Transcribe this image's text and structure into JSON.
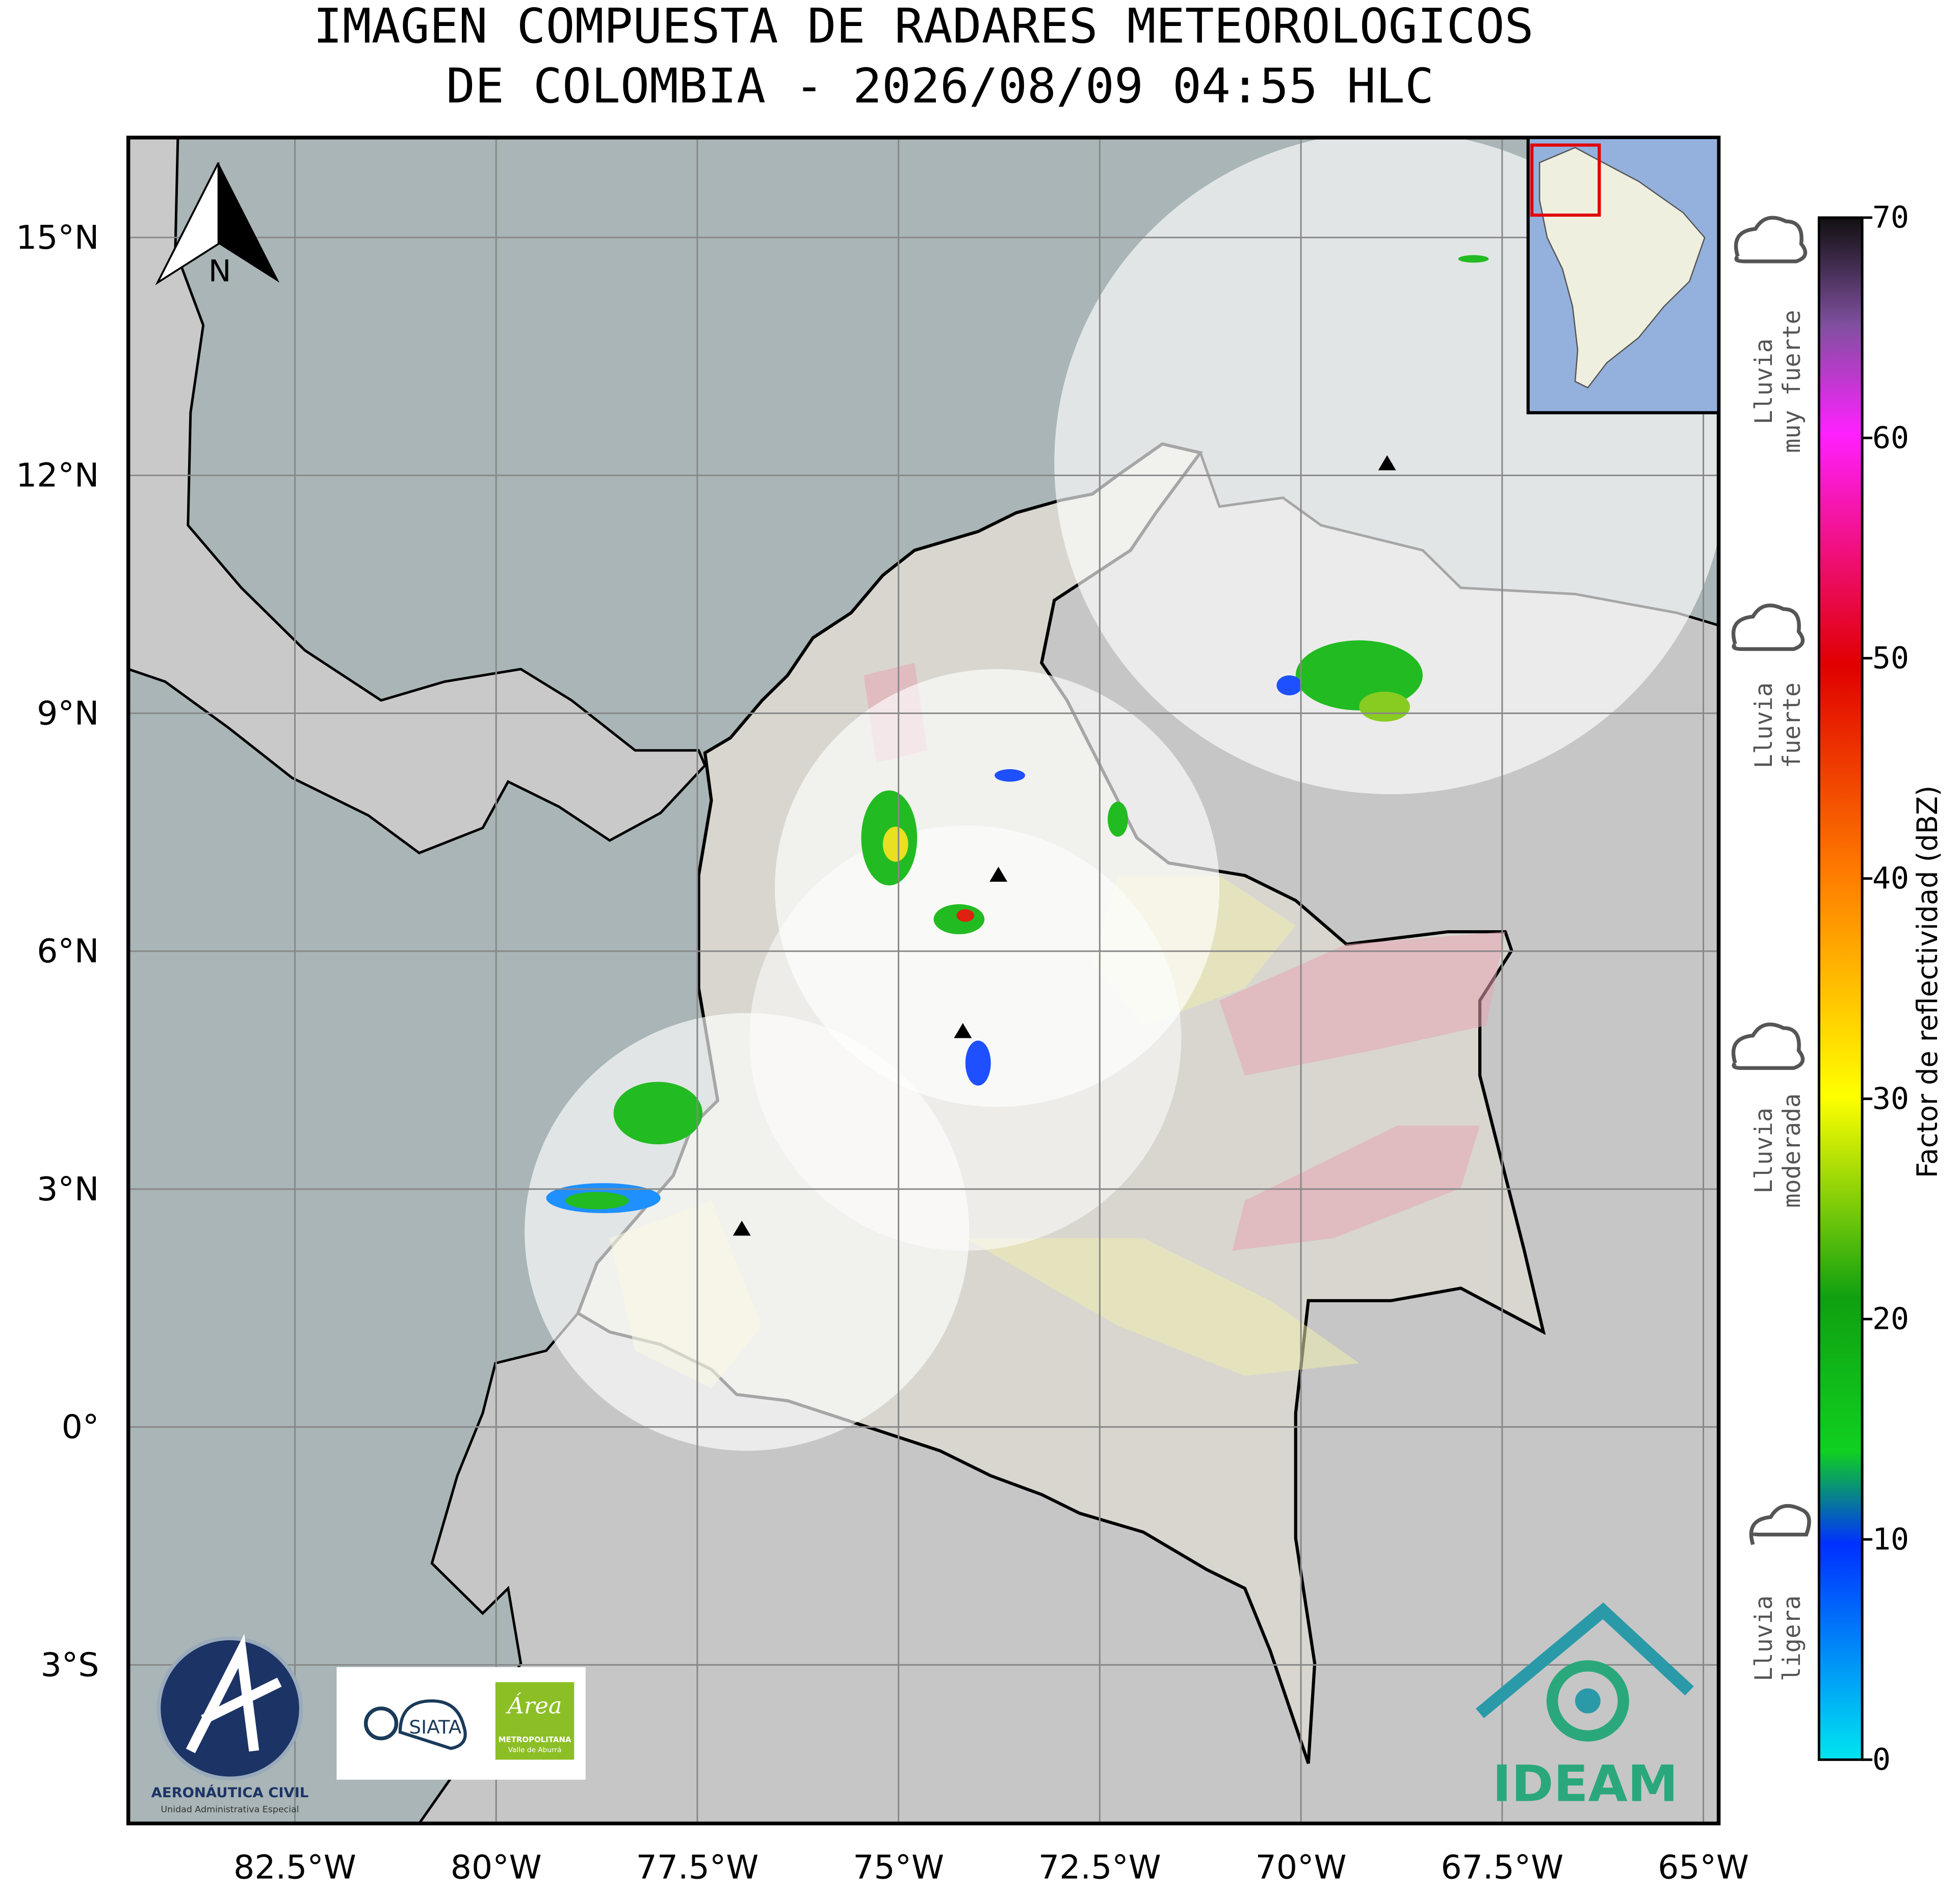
{
  "title": [
    "IMAGEN COMPUESTA DE RADARES METEOROLOGICOS",
    "DE COLOMBIA - 2026/08/09 04:55 HLC"
  ],
  "map": {
    "xlim": [
      -84.57,
      -64.81
    ],
    "ylim": [
      -5.0,
      16.26
    ],
    "grid": true,
    "north_label": "N",
    "xticks": [
      {
        "value": -82.5,
        "label": "82.5°W"
      },
      {
        "value": -80,
        "label": "80°W"
      },
      {
        "value": -77.5,
        "label": "77.5°W"
      },
      {
        "value": -75,
        "label": "75°W"
      },
      {
        "value": -72.5,
        "label": "72.5°W"
      },
      {
        "value": -70,
        "label": "70°W"
      },
      {
        "value": -67.5,
        "label": "67.5°W"
      },
      {
        "value": -65,
        "label": "65°W"
      }
    ],
    "yticks": [
      {
        "value": 15,
        "label": "15°N"
      },
      {
        "value": 12,
        "label": "12°N"
      },
      {
        "value": 9,
        "label": "9°N"
      },
      {
        "value": 6,
        "label": "6°N"
      },
      {
        "value": 3,
        "label": "3°N"
      },
      {
        "value": 0,
        "label": "0°"
      },
      {
        "value": -3,
        "label": "3°S"
      }
    ]
  },
  "colorbar": {
    "label": "Factor de reflectividad (dBZ)",
    "lim": [
      0,
      70
    ],
    "ticks": [
      0,
      10,
      20,
      30,
      40,
      50,
      60,
      70
    ]
  },
  "rain_labels": [
    [
      "Lluvia",
      "muy fuerte"
    ],
    [
      "Lluvia",
      "fuerte"
    ],
    [
      "Lluvia",
      "moderada"
    ],
    [
      "Lluvia",
      "ligera"
    ]
  ],
  "logos": {
    "aerocivil": [
      "AERONÁUTICA CIVIL",
      "Unidad Administrativa Especial"
    ],
    "siata": "SIATA",
    "area": [
      "Área",
      "METROPOLITANA",
      "Valle de Aburrá"
    ],
    "ideam": "IDEAM"
  }
}
